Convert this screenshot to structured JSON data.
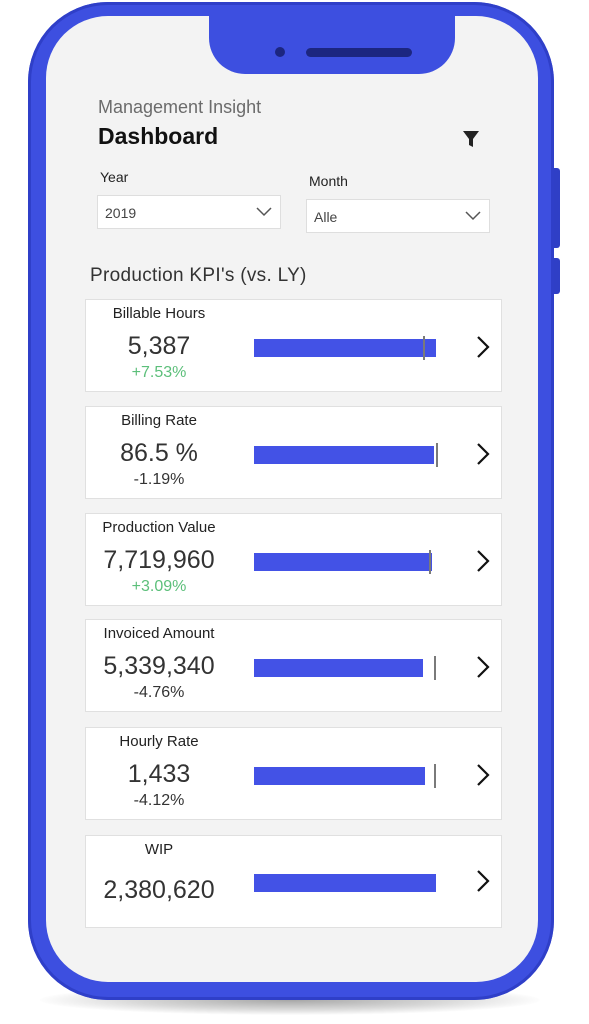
{
  "header": {
    "subtitle": "Management Insight",
    "title": "Dashboard",
    "filter_icon": "filter-icon"
  },
  "filters": {
    "year": {
      "label": "Year",
      "value": "2019"
    },
    "month": {
      "label": "Month",
      "value": "Alle"
    }
  },
  "section_title": "Production KPI's (vs. LY)",
  "colors": {
    "phone_frame": "#3d4fe0",
    "bar": "#4352e6",
    "positive": "#5cbf7a",
    "negative": "#333333"
  },
  "kpis": [
    {
      "name": "Billable Hours",
      "value": "5,387",
      "change": "+7.53%",
      "trend": "positive",
      "bar_fraction": 1.0,
      "target_fraction": 0.92
    },
    {
      "name": "Billing Rate",
      "value": "86.5 %",
      "change": "-1.19%",
      "trend": "negative",
      "bar_fraction": 0.99,
      "target_fraction": 0.99
    },
    {
      "name": "Production Value",
      "value": "7,719,960",
      "change": "+3.09%",
      "trend": "positive",
      "bar_fraction": 0.98,
      "target_fraction": 0.95
    },
    {
      "name": "Invoiced Amount",
      "value": "5,339,340",
      "change": "-4.76%",
      "trend": "negative",
      "bar_fraction": 0.93,
      "target_fraction": 0.98
    },
    {
      "name": "Hourly Rate",
      "value": "1,433",
      "change": "-4.12%",
      "trend": "negative",
      "bar_fraction": 0.94,
      "target_fraction": 0.98
    },
    {
      "name": "WIP",
      "value": "2,380,620",
      "change": "",
      "trend": "none",
      "bar_fraction": 1.0,
      "target_fraction": null
    }
  ]
}
